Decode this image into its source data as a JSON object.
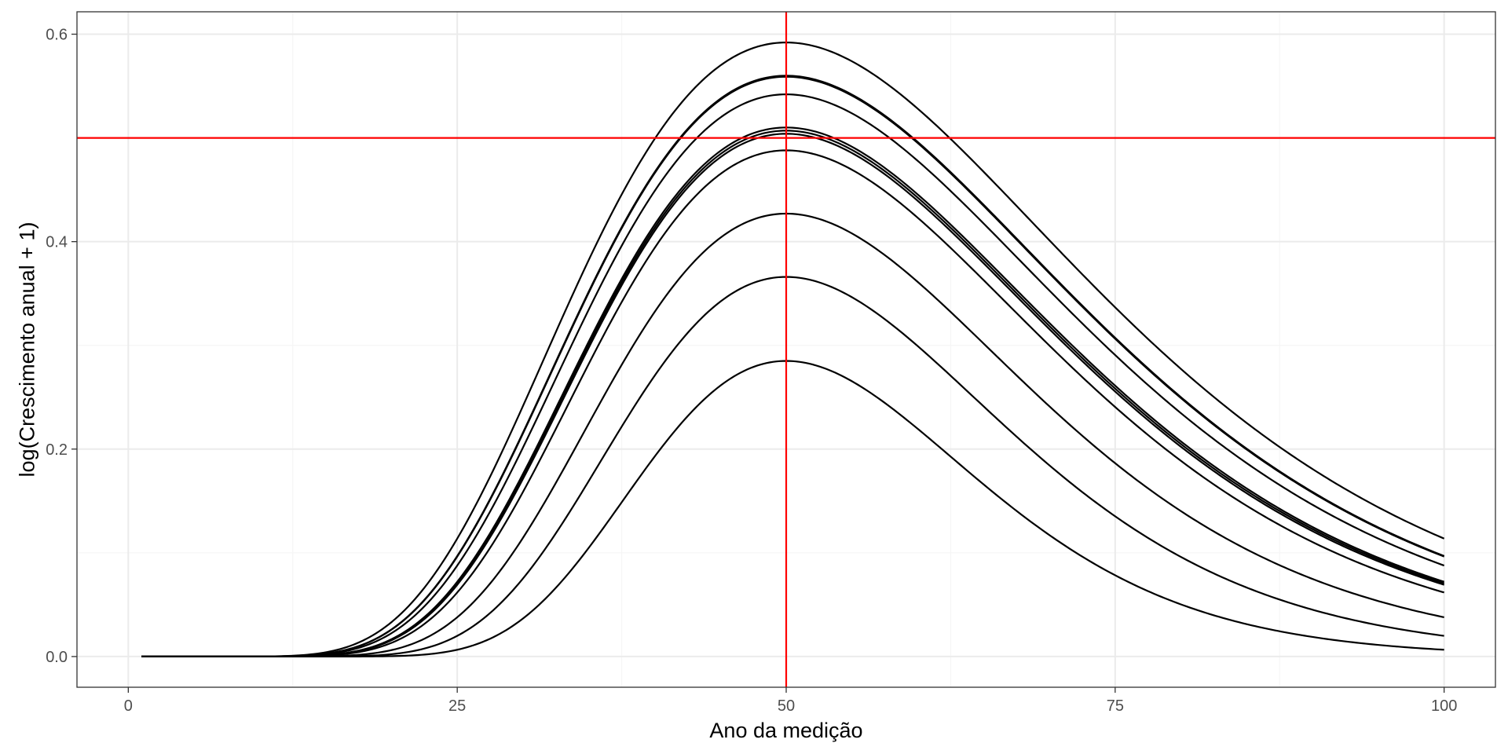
{
  "chart_data": {
    "type": "line",
    "title": "",
    "xlabel": "Ano da medição",
    "ylabel": "log(Crescimento anual + 1)",
    "xlim": [
      -3.9,
      103.9
    ],
    "ylim": [
      -0.0296,
      0.6216
    ],
    "x_ticks": [
      0,
      25,
      50,
      75,
      100
    ],
    "x_tick_labels": [
      "0",
      "25",
      "50",
      "75",
      "100"
    ],
    "x_minor_ticks": [
      12.5,
      37.5,
      62.5,
      87.5
    ],
    "y_ticks": [
      0.0,
      0.2,
      0.4,
      0.6
    ],
    "y_tick_labels": [
      "0.0",
      "0.2",
      "0.4",
      "0.6"
    ],
    "y_minor_ticks": [
      0.1,
      0.3,
      0.5
    ],
    "grid": true,
    "legend": "none",
    "x_range": [
      1,
      100
    ],
    "peak_x": 50,
    "curve_shape": "log-normal hump: y = peak * exp(-(ln(x/50))^2 / (2*sigma^2))",
    "series": [
      {
        "peak": 0.592,
        "sigma": 0.3816
      },
      {
        "peak": 0.56,
        "sigma": 0.3701
      },
      {
        "peak": 0.559,
        "sigma": 0.3697
      },
      {
        "peak": 0.542,
        "sigma": 0.3632
      },
      {
        "peak": 0.51,
        "sigma": 0.3504
      },
      {
        "peak": 0.507,
        "sigma": 0.3491
      },
      {
        "peak": 0.504,
        "sigma": 0.3478
      },
      {
        "peak": 0.488,
        "sigma": 0.3409
      },
      {
        "peak": 0.427,
        "sigma": 0.3149
      },
      {
        "peak": 0.366,
        "sigma": 0.2873
      },
      {
        "peak": 0.285,
        "sigma": 0.2523
      }
    ],
    "reference_lines": {
      "vertical_x": 50,
      "horizontal_y": 0.5
    },
    "colors": {
      "series": "#000000",
      "reference": "#ff0000",
      "grid_major": "#ebebeb",
      "grid_minor": "#f5f5f5",
      "panel_border": "#333333",
      "tick_text": "#4d4d4d"
    }
  }
}
